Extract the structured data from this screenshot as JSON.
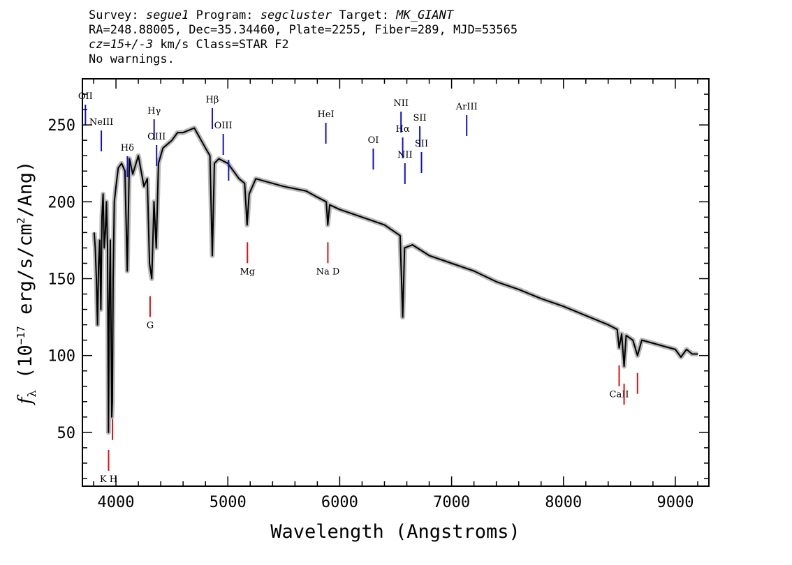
{
  "header": {
    "survey_label": "Survey:",
    "survey": "segue1",
    "program_label": "Program:",
    "program": "segcluster",
    "target_label": "Target:",
    "target": "MK_GIANT",
    "line2": "RA=248.88005, Dec=35.34460, Plate=2255, Fiber=289, MJD=53565",
    "cz": "cz=15+/-3",
    "cz_rest": " km/s Class=STAR F2",
    "line4": "No warnings."
  },
  "colors": {
    "emission": "#1010d0",
    "absorption": "#e01010",
    "spectrum": "#000000",
    "error_band": "#b8b8b8"
  },
  "chart_data": {
    "type": "line",
    "title": "",
    "xlabel": "Wavelength (Angstroms)",
    "ylabel": "f_λ (10^-17 erg/s/cm^2/Ang)",
    "xlim": [
      3700,
      9300
    ],
    "ylim": [
      15,
      280
    ],
    "xticks": [
      "4000",
      "5000",
      "6000",
      "7000",
      "8000",
      "9000"
    ],
    "yticks": [
      "50",
      "100",
      "150",
      "200",
      "250"
    ],
    "grid": false,
    "series": [
      {
        "x": [
          3805,
          3815,
          3825,
          3835,
          3845,
          3855,
          3865,
          3875,
          3885,
          3895,
          3905,
          3915,
          3925,
          3933,
          3940,
          3950,
          3962,
          3968,
          3975,
          3985,
          4000,
          4020,
          4050,
          4080,
          4101,
          4120,
          4150,
          4200,
          4250,
          4280,
          4300,
          4320,
          4340,
          4360,
          4380,
          4420,
          4500,
          4550,
          4600,
          4700,
          4800,
          4840,
          4861,
          4880,
          4920,
          5000,
          5100,
          5150,
          5172,
          5190,
          5250,
          5350,
          5500,
          5700,
          5800,
          5880,
          5893,
          5910,
          6000,
          6200,
          6400,
          6500,
          6540,
          6563,
          6580,
          6650,
          6800,
          7000,
          7200,
          7400,
          7600,
          7800,
          8000,
          8200,
          8400,
          8480,
          8498,
          8520,
          8542,
          8560,
          8620,
          8662,
          8700,
          8800,
          8900,
          9000,
          9050,
          9100,
          9150,
          9200
        ],
        "y": [
          180,
          170,
          150,
          120,
          160,
          175,
          130,
          190,
          205,
          170,
          180,
          200,
          170,
          50,
          130,
          175,
          60,
          70,
          150,
          200,
          210,
          222,
          225,
          220,
          155,
          228,
          218,
          230,
          210,
          215,
          160,
          150,
          200,
          170,
          225,
          235,
          240,
          245,
          245,
          248,
          235,
          230,
          165,
          225,
          228,
          225,
          215,
          212,
          185,
          205,
          215,
          213,
          210,
          207,
          203,
          200,
          185,
          198,
          195,
          190,
          185,
          180,
          178,
          125,
          170,
          172,
          165,
          160,
          155,
          148,
          143,
          137,
          132,
          126,
          120,
          117,
          105,
          114,
          93,
          113,
          110,
          100,
          110,
          108,
          106,
          104,
          99,
          104,
          101,
          101
        ]
      }
    ],
    "emission_lines": [
      {
        "label": "OII",
        "x": 3727
      },
      {
        "label": "NeIII",
        "x": 3869
      },
      {
        "label": "Hδ",
        "x": 4102
      },
      {
        "label": "Hγ",
        "x": 4341
      },
      {
        "label": "OIII",
        "x": 4363
      },
      {
        "label": "Hβ",
        "x": 4861
      },
      {
        "label": "OIII",
        "x": 4959
      },
      {
        "label": "",
        "x": 5007
      },
      {
        "label": "HeI",
        "x": 5876
      },
      {
        "label": "OI",
        "x": 6300
      },
      {
        "label": "NII",
        "x": 6548
      },
      {
        "label": "Hα",
        "x": 6563
      },
      {
        "label": "NII",
        "x": 6583
      },
      {
        "label": "SII",
        "x": 6716
      },
      {
        "label": "SII",
        "x": 6731
      },
      {
        "label": "ArIII",
        "x": 7135
      }
    ],
    "absorption_lines": [
      {
        "label": "K H",
        "x": 3934
      },
      {
        "label": "",
        "x": 3969
      },
      {
        "label": "G",
        "x": 4305
      },
      {
        "label": "Mg",
        "x": 5175
      },
      {
        "label": "Na  D",
        "x": 5894
      },
      {
        "label": "CaII",
        "x": 8498
      },
      {
        "label": "",
        "x": 8542
      },
      {
        "label": "",
        "x": 8662
      }
    ]
  }
}
